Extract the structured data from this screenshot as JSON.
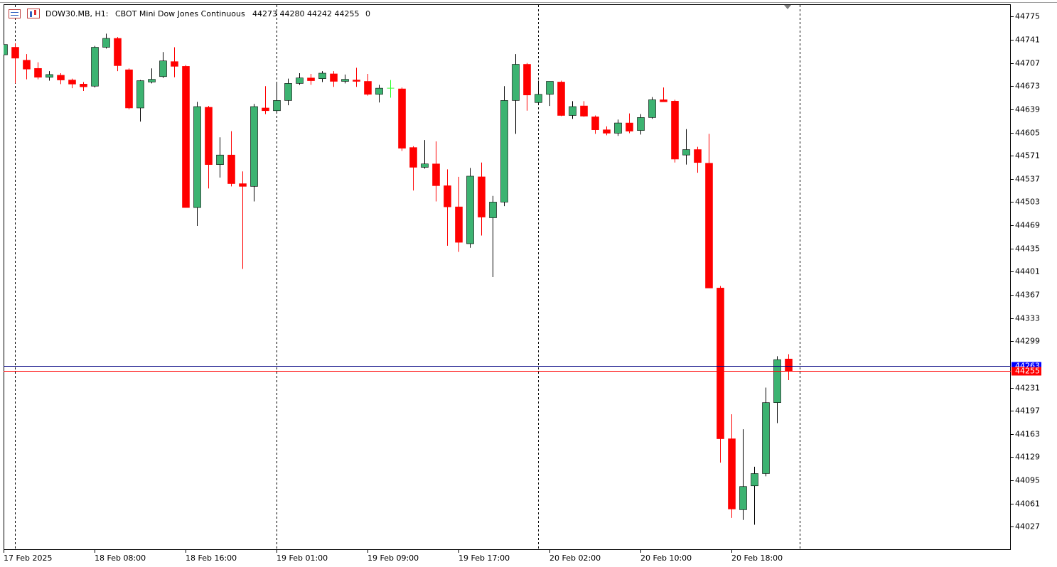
{
  "chart_data": {
    "type": "candlestick",
    "header": {
      "symbol": "DOW30.MB, H1:",
      "description": "CBOT Mini Dow Jones Continuous",
      "ohlc": "44273 44280 44242 44255",
      "volume": "0"
    },
    "categories": [
      "17 Feb 2025",
      null,
      null,
      null,
      null,
      null,
      null,
      null,
      "18 Feb 08:00",
      null,
      null,
      null,
      null,
      null,
      null,
      null,
      "18 Feb 16:00",
      null,
      null,
      null,
      null,
      null,
      null,
      null,
      "19 Feb 01:00",
      null,
      null,
      null,
      null,
      null,
      null,
      null,
      "19 Feb 09:00",
      null,
      null,
      null,
      null,
      null,
      null,
      null,
      "19 Feb 17:00",
      null,
      null,
      null,
      null,
      null,
      null,
      null,
      "20 Feb 02:00",
      null,
      null,
      null,
      null,
      null,
      null,
      null,
      "20 Feb 10:00",
      null,
      null,
      null,
      null,
      null,
      null,
      null,
      "20 Feb 18:00",
      null,
      null,
      null,
      null,
      null
    ],
    "open": [
      44719,
      44730,
      44711,
      44699,
      44686,
      44689,
      44682,
      44676,
      44673,
      44730,
      44743,
      44697,
      44641,
      44679,
      44687,
      44709,
      44702,
      44495,
      44642,
      44558,
      44572,
      44530,
      44526,
      44641,
      44637,
      44652,
      44677,
      44685,
      44684,
      44691,
      44680,
      44682,
      44680,
      44661,
      44670,
      44669,
      44583,
      44554,
      44559,
      44527,
      44496,
      44442,
      44540,
      44480,
      44503,
      44652,
      44705,
      44649,
      44661,
      44679,
      44630,
      44644,
      44628,
      44609,
      44604,
      44619,
      44608,
      44627,
      44653,
      44651,
      44572,
      44580,
      44560,
      44377,
      44156,
      44052,
      44087,
      44105,
      44209,
      44273
    ],
    "high": [
      44734,
      44736,
      44720,
      44708,
      44695,
      44692,
      44684,
      44679,
      44732,
      44750,
      44745,
      44699,
      44682,
      44699,
      44723,
      44730,
      44704,
      44650,
      44644,
      44598,
      44607,
      44548,
      44647,
      44673,
      44677,
      44684,
      44692,
      44691,
      44695,
      44695,
      44690,
      44700,
      44691,
      44675,
      44682,
      44671,
      44585,
      44594,
      44592,
      44551,
      44540,
      44553,
      44561,
      44512,
      44673,
      44720,
      44707,
      44681,
      44680,
      44681,
      44651,
      44651,
      44630,
      44614,
      44624,
      44633,
      44632,
      44657,
      44671,
      44653,
      44610,
      44584,
      44603,
      44380,
      44192,
      44170,
      44115,
      44231,
      44277,
      44280
    ],
    "low": [
      44719,
      44677,
      44683,
      44683,
      44681,
      44676,
      44670,
      44666,
      44671,
      44728,
      44695,
      44639,
      44621,
      44677,
      44685,
      44686,
      44495,
      44468,
      44523,
      44539,
      44526,
      44405,
      44504,
      44632,
      44634,
      44645,
      44675,
      44675,
      44679,
      44672,
      44677,
      44672,
      44659,
      44649,
      44656,
      44578,
      44520,
      44552,
      44504,
      44439,
      44430,
      44436,
      44454,
      44393,
      44497,
      44603,
      44637,
      44645,
      44644,
      44629,
      44625,
      44628,
      44603,
      44601,
      44600,
      44604,
      44602,
      44625,
      44650,
      44561,
      44558,
      44546,
      44377,
      44121,
      44040,
      44037,
      44030,
      44101,
      44179,
      44242
    ],
    "close": [
      44734,
      44714,
      44698,
      44686,
      44690,
      44682,
      44676,
      44672,
      44730,
      44743,
      44703,
      44641,
      44681,
      44683,
      44710,
      44702,
      44495,
      44643,
      44558,
      44572,
      44530,
      44526,
      44643,
      44637,
      44652,
      44677,
      44685,
      44681,
      44692,
      44680,
      44683,
      44680,
      44661,
      44670,
      44670,
      44582,
      44554,
      44559,
      44527,
      44496,
      44444,
      44541,
      44481,
      44503,
      44652,
      44705,
      44660,
      44661,
      44680,
      44630,
      44643,
      44629,
      44609,
      44604,
      44619,
      44607,
      44627,
      44653,
      44650,
      44566,
      44580,
      44561,
      44377,
      44156,
      44053,
      44086,
      44105,
      44209,
      44272,
      44255
    ],
    "up_color": "#3cb371",
    "down_color": "#ff0000",
    "doji_color": "#33ff33",
    "ylim": [
      43993,
      44792
    ],
    "yticks": [
      44775,
      44741,
      44707,
      44673,
      44639,
      44605,
      44571,
      44537,
      44503,
      44469,
      44435,
      44401,
      44367,
      44333,
      44299,
      44231,
      44197,
      44163,
      44129,
      44095,
      44061,
      44027
    ],
    "price_lines": [
      {
        "name": "ask",
        "value": 44263,
        "color": "#0000ff",
        "line_color": "#000080"
      },
      {
        "name": "bid",
        "value": 44255,
        "color": "#ff0000",
        "line_color": "#ff0000"
      }
    ],
    "grid": false
  }
}
